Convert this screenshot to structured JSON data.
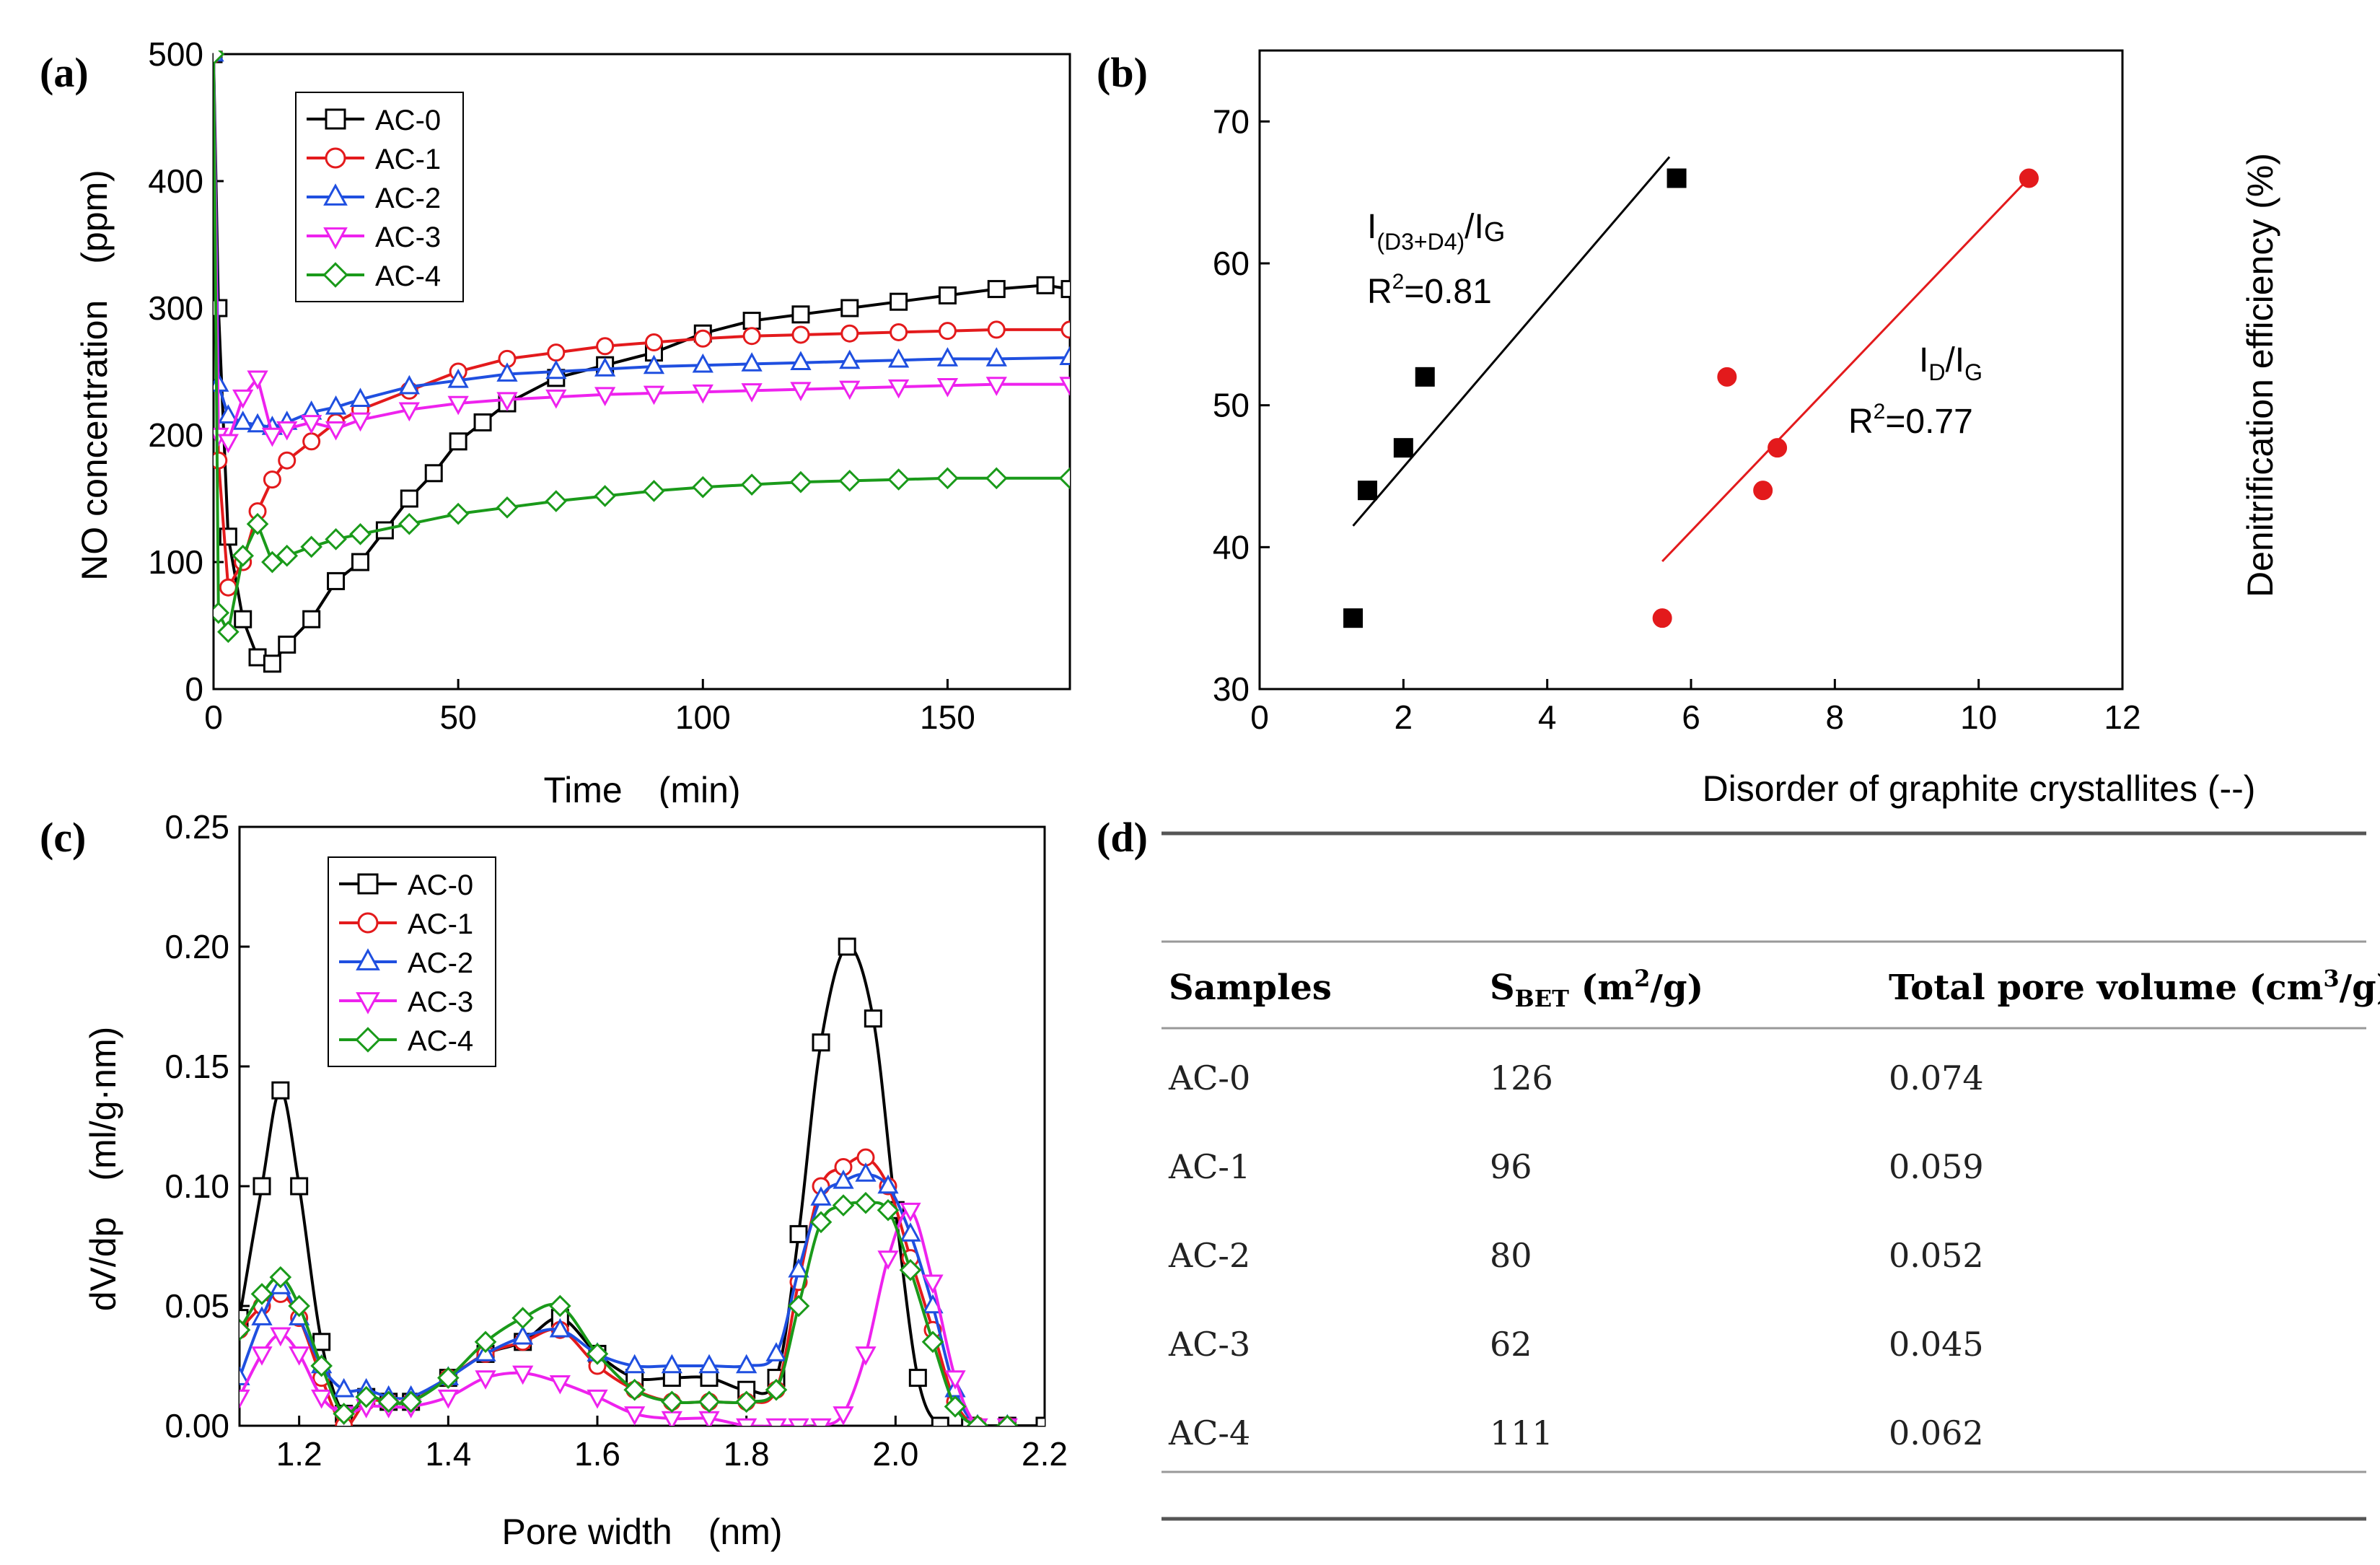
{
  "chart_data": [
    {
      "panel": "(a)",
      "type": "line",
      "xlabel": "Time　(min)",
      "ylabel": "NO concentration　(ppm)",
      "xlim": [
        0,
        175
      ],
      "ylim": [
        0,
        500
      ],
      "xticks": [
        0,
        50,
        100,
        150
      ],
      "yticks": [
        0,
        100,
        200,
        300,
        400,
        500
      ],
      "legend": [
        "AC-0",
        "AC-1",
        "AC-2",
        "AC-3",
        "AC-4"
      ],
      "legend_position": "top-left",
      "series": [
        {
          "name": "AC-0",
          "color": "#000000",
          "marker": "square",
          "x": [
            0,
            1,
            3,
            6,
            9,
            12,
            15,
            20,
            25,
            30,
            35,
            40,
            45,
            50,
            55,
            60,
            70,
            80,
            90,
            100,
            110,
            120,
            130,
            140,
            150,
            160,
            170,
            175
          ],
          "y": [
            500,
            300,
            120,
            55,
            25,
            20,
            35,
            55,
            85,
            100,
            125,
            150,
            170,
            195,
            210,
            225,
            245,
            255,
            265,
            280,
            290,
            295,
            300,
            305,
            310,
            315,
            318,
            315
          ]
        },
        {
          "name": "AC-1",
          "color": "#e31a1c",
          "marker": "circle",
          "x": [
            0,
            1,
            3,
            6,
            9,
            12,
            15,
            20,
            25,
            30,
            40,
            50,
            60,
            70,
            80,
            90,
            100,
            110,
            120,
            130,
            140,
            150,
            160,
            175
          ],
          "y": [
            500,
            180,
            80,
            100,
            140,
            165,
            180,
            195,
            210,
            220,
            235,
            250,
            260,
            265,
            270,
            273,
            276,
            278,
            279,
            280,
            281,
            282,
            283,
            283
          ]
        },
        {
          "name": "AC-2",
          "color": "#1f4fe0",
          "marker": "triangle-up",
          "x": [
            0,
            1,
            3,
            6,
            9,
            12,
            15,
            20,
            25,
            30,
            40,
            50,
            60,
            70,
            80,
            90,
            100,
            110,
            120,
            130,
            140,
            150,
            160,
            175
          ],
          "y": [
            500,
            240,
            215,
            210,
            208,
            206,
            210,
            218,
            222,
            228,
            238,
            243,
            248,
            250,
            252,
            254,
            255,
            256,
            257,
            258,
            259,
            260,
            260,
            261
          ]
        },
        {
          "name": "AC-3",
          "color": "#ee22ee",
          "marker": "triangle-down",
          "x": [
            0,
            1,
            3,
            6,
            9,
            12,
            15,
            20,
            25,
            30,
            40,
            50,
            60,
            70,
            80,
            90,
            100,
            110,
            120,
            130,
            140,
            150,
            160,
            175
          ],
          "y": [
            500,
            200,
            195,
            230,
            245,
            200,
            205,
            210,
            205,
            212,
            220,
            225,
            228,
            230,
            232,
            233,
            234,
            235,
            236,
            237,
            238,
            239,
            240,
            240
          ]
        },
        {
          "name": "AC-4",
          "color": "#1a9a1a",
          "marker": "diamond",
          "x": [
            0,
            1,
            3,
            6,
            9,
            12,
            15,
            20,
            25,
            30,
            40,
            50,
            60,
            70,
            80,
            90,
            100,
            110,
            120,
            130,
            140,
            150,
            160,
            175
          ],
          "y": [
            500,
            60,
            45,
            105,
            130,
            100,
            105,
            112,
            118,
            122,
            130,
            138,
            143,
            148,
            152,
            156,
            159,
            161,
            163,
            164,
            165,
            166,
            166,
            166
          ]
        }
      ]
    },
    {
      "panel": "(b)",
      "type": "scatter",
      "xlabel": "Disorder of graphite crystallites (--)",
      "ylabel": "Denitrification efficiency (%)",
      "xlim": [
        0,
        12
      ],
      "ylim": [
        30,
        75
      ],
      "xticks": [
        0,
        2,
        4,
        6,
        8,
        10,
        12
      ],
      "yticks": [
        30,
        40,
        50,
        60,
        70
      ],
      "series": [
        {
          "name": "I(D3+D4)/IG",
          "color": "#000000",
          "marker": "square",
          "x": [
            1.3,
            1.5,
            2.0,
            2.3,
            5.8
          ],
          "y": [
            35,
            44,
            47,
            52,
            66
          ],
          "fit_x": [
            1.3,
            5.7
          ],
          "fit_y": [
            41.5,
            67.5
          ]
        },
        {
          "name": "ID/IG",
          "color": "#e31a1c",
          "marker": "circle",
          "x": [
            5.6,
            6.5,
            7.0,
            7.2,
            10.7
          ],
          "y": [
            35,
            52,
            44,
            47,
            66
          ],
          "fit_x": [
            5.6,
            10.7
          ],
          "fit_y": [
            39,
            66
          ]
        }
      ],
      "annotations": {
        "black_label_main": "I",
        "black_label_sub": "(D3+D4)",
        "black_label_after": "/I",
        "black_label_sub2": "G",
        "black_r2": "R",
        "black_r2_sup": "2",
        "black_r2_val": "=0.81",
        "red_label_main": "I",
        "red_label_sub": "D",
        "red_label_after": "/I",
        "red_label_sub2": "G",
        "red_r2": "R",
        "red_r2_sup": "2",
        "red_r2_val": "=0.77"
      }
    },
    {
      "panel": "(c)",
      "type": "line",
      "xlabel": "Pore width　(nm)",
      "ylabel": "dV/dp　(ml/g·nm)",
      "xlim": [
        1.12,
        2.2
      ],
      "ylim": [
        0,
        0.25
      ],
      "xticks": [
        "1.2",
        "1.4",
        "1.6",
        "1.8",
        "2.0",
        "2.2"
      ],
      "yticks": [
        "0.00",
        "0.05",
        "0.10",
        "0.15",
        "0.20",
        "0.25"
      ],
      "legend": [
        "AC-0",
        "AC-1",
        "AC-2",
        "AC-3",
        "AC-4"
      ],
      "legend_position": "top-left",
      "series": [
        {
          "name": "AC-0",
          "color": "#000000",
          "marker": "square",
          "x": [
            1.12,
            1.15,
            1.175,
            1.2,
            1.23,
            1.26,
            1.29,
            1.32,
            1.35,
            1.4,
            1.45,
            1.5,
            1.55,
            1.6,
            1.65,
            1.7,
            1.75,
            1.8,
            1.84,
            1.87,
            1.9,
            1.935,
            1.97,
            2.0,
            2.03,
            2.06,
            2.1,
            2.15,
            2.2
          ],
          "y": [
            0.045,
            0.1,
            0.14,
            0.1,
            0.035,
            0.005,
            0.012,
            0.01,
            0.01,
            0.02,
            0.03,
            0.035,
            0.045,
            0.03,
            0.02,
            0.02,
            0.02,
            0.015,
            0.02,
            0.08,
            0.16,
            0.2,
            0.17,
            0.09,
            0.02,
            0.0,
            0.0,
            0.0,
            0.0
          ]
        },
        {
          "name": "AC-1",
          "color": "#e31a1c",
          "marker": "circle",
          "x": [
            1.12,
            1.15,
            1.175,
            1.2,
            1.23,
            1.26,
            1.29,
            1.32,
            1.35,
            1.4,
            1.45,
            1.5,
            1.55,
            1.6,
            1.65,
            1.7,
            1.75,
            1.8,
            1.84,
            1.87,
            1.9,
            1.93,
            1.96,
            1.99,
            2.02,
            2.05,
            2.08,
            2.11,
            2.15
          ],
          "y": [
            0.04,
            0.05,
            0.055,
            0.045,
            0.02,
            0.0,
            0.01,
            0.01,
            0.01,
            0.02,
            0.03,
            0.035,
            0.04,
            0.025,
            0.015,
            0.01,
            0.01,
            0.01,
            0.015,
            0.06,
            0.1,
            0.108,
            0.112,
            0.1,
            0.07,
            0.04,
            0.01,
            0.0,
            0.0
          ]
        },
        {
          "name": "AC-2",
          "color": "#1f4fe0",
          "marker": "triangle-up",
          "x": [
            1.12,
            1.15,
            1.175,
            1.2,
            1.23,
            1.26,
            1.29,
            1.32,
            1.35,
            1.4,
            1.45,
            1.5,
            1.55,
            1.6,
            1.65,
            1.7,
            1.75,
            1.8,
            1.84,
            1.87,
            1.9,
            1.93,
            1.96,
            1.99,
            2.02,
            2.05,
            2.08,
            2.11,
            2.15
          ],
          "y": [
            0.02,
            0.045,
            0.058,
            0.045,
            0.025,
            0.015,
            0.015,
            0.012,
            0.012,
            0.02,
            0.03,
            0.037,
            0.04,
            0.03,
            0.025,
            0.025,
            0.025,
            0.025,
            0.03,
            0.065,
            0.095,
            0.102,
            0.105,
            0.1,
            0.08,
            0.05,
            0.015,
            0.0,
            0.0
          ]
        },
        {
          "name": "AC-3",
          "color": "#ee22ee",
          "marker": "triangle-down",
          "x": [
            1.12,
            1.15,
            1.175,
            1.2,
            1.23,
            1.26,
            1.29,
            1.32,
            1.35,
            1.4,
            1.45,
            1.5,
            1.55,
            1.6,
            1.65,
            1.7,
            1.75,
            1.8,
            1.84,
            1.87,
            1.9,
            1.93,
            1.96,
            1.99,
            2.02,
            2.05,
            2.08,
            2.11,
            2.15
          ],
          "y": [
            0.012,
            0.03,
            0.038,
            0.03,
            0.012,
            0.005,
            0.008,
            0.008,
            0.008,
            0.012,
            0.02,
            0.022,
            0.018,
            0.012,
            0.005,
            0.003,
            0.003,
            0.0,
            0.0,
            0.0,
            0.0,
            0.005,
            0.03,
            0.07,
            0.09,
            0.06,
            0.02,
            0.0,
            0.0
          ]
        },
        {
          "name": "AC-4",
          "color": "#1a9a1a",
          "marker": "diamond",
          "x": [
            1.12,
            1.15,
            1.175,
            1.2,
            1.23,
            1.26,
            1.29,
            1.32,
            1.35,
            1.4,
            1.45,
            1.5,
            1.55,
            1.6,
            1.65,
            1.7,
            1.75,
            1.8,
            1.84,
            1.87,
            1.9,
            1.93,
            1.96,
            1.99,
            2.02,
            2.05,
            2.08,
            2.11,
            2.15
          ],
          "y": [
            0.04,
            0.055,
            0.062,
            0.05,
            0.025,
            0.005,
            0.012,
            0.01,
            0.01,
            0.02,
            0.035,
            0.045,
            0.05,
            0.03,
            0.015,
            0.01,
            0.01,
            0.01,
            0.015,
            0.05,
            0.085,
            0.092,
            0.093,
            0.09,
            0.065,
            0.035,
            0.008,
            0.0,
            0.0
          ]
        }
      ]
    },
    {
      "panel": "(d)",
      "type": "table",
      "headers": {
        "samples": "Samples",
        "sbet_main": "S",
        "sbet_sub": "BET",
        "sbet_unit_a": " (m",
        "sbet_unit_sup": "2",
        "sbet_unit_b": "/g)",
        "vol_a": "Total pore volume (cm",
        "vol_sup": "3",
        "vol_b": "/g)"
      },
      "rows": [
        [
          "AC-0",
          "126",
          "0.074"
        ],
        [
          "AC-1",
          "96",
          "0.059"
        ],
        [
          "AC-2",
          "80",
          "0.052"
        ],
        [
          "AC-3",
          "62",
          "0.045"
        ],
        [
          "AC-4",
          "111",
          "0.062"
        ]
      ]
    }
  ],
  "panel_labels": {
    "a": "(a)",
    "b": "(b)",
    "c": "(c)",
    "d": "(d)"
  }
}
